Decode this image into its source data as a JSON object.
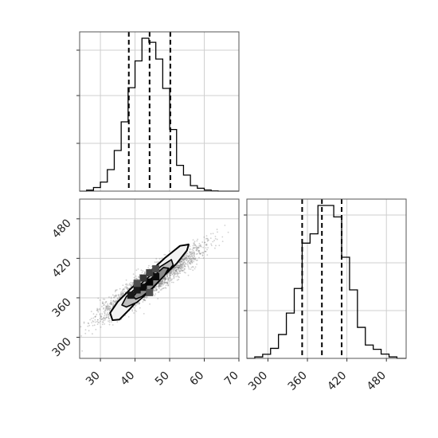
{
  "chart_data": [
    {
      "type": "histogram",
      "panel": "top-left",
      "grid": true,
      "xlim": [
        24,
        70
      ],
      "ylim": [
        0,
        5200
      ],
      "bins": [
        [
          24,
          26,
          0
        ],
        [
          26,
          28,
          40
        ],
        [
          28,
          30,
          150
        ],
        [
          30,
          32,
          380
        ],
        [
          32,
          34,
          900
        ],
        [
          34,
          36,
          1700
        ],
        [
          36,
          38,
          2900
        ],
        [
          38,
          40,
          4330
        ],
        [
          40,
          42,
          5450
        ],
        [
          42,
          44,
          6400
        ],
        [
          44,
          46,
          6230
        ],
        [
          46,
          48,
          5530
        ],
        [
          48,
          50,
          4300
        ],
        [
          50,
          52,
          2580
        ],
        [
          52,
          54,
          1080
        ],
        [
          54,
          56,
          670
        ],
        [
          56,
          58,
          230
        ],
        [
          58,
          60,
          120
        ],
        [
          60,
          62,
          45
        ],
        [
          62,
          64,
          10
        ],
        [
          64,
          70,
          0
        ]
      ],
      "quantiles": [
        38.2,
        44.2,
        50.2
      ]
    },
    {
      "type": "contour",
      "panel": "bottom-left",
      "grid": true,
      "xlim": [
        24,
        70
      ],
      "ylim": [
        268,
        510
      ],
      "x_ticks": [
        "30",
        "40",
        "50",
        "60",
        "70"
      ],
      "y_ticks": [
        "300",
        "360",
        "420",
        "480"
      ],
      "x_tick_values": [
        30,
        40,
        50,
        60,
        70
      ],
      "y_tick_values": [
        300,
        360,
        420,
        480
      ],
      "center": [
        44.2,
        382
      ],
      "contour_levels": [
        {
          "name": "outer",
          "polygon": [
            [
              33.5,
              326
            ],
            [
              32.8,
              337
            ],
            [
              35,
              354
            ],
            [
              39,
              375
            ],
            [
              44,
              398
            ],
            [
              48.5,
              420
            ],
            [
              53,
              439
            ],
            [
              55.5,
              441
            ],
            [
              55,
              432
            ],
            [
              52,
              412
            ],
            [
              48,
              392
            ],
            [
              43,
              369
            ],
            [
              38.5,
              343
            ],
            [
              35.5,
              327
            ]
          ]
        },
        {
          "name": "middle",
          "polygon": [
            [
              36.2,
              349
            ],
            [
              37.5,
              362
            ],
            [
              42.5,
              385
            ],
            [
              47.5,
              408
            ],
            [
              50.5,
              418
            ],
            [
              51,
              410
            ],
            [
              48.5,
              394
            ],
            [
              44.5,
              371
            ],
            [
              40.5,
              353
            ],
            [
              37.5,
              346
            ]
          ]
        },
        {
          "name": "inner",
          "polygon": [
            [
              39.5,
              362
            ],
            [
              41.2,
              373
            ],
            [
              45,
              391
            ],
            [
              48.2,
              406
            ],
            [
              49.7,
              405
            ],
            [
              48.5,
              394
            ],
            [
              45,
              375
            ],
            [
              42,
              362
            ],
            [
              40.2,
              358
            ]
          ]
        }
      ],
      "density_cells": [
        [
          38.8,
          364,
          0.9
        ],
        [
          40.6,
          372,
          0.9
        ],
        [
          42.4,
          376,
          0.95
        ],
        [
          44.2,
          384,
          0.98
        ],
        [
          46,
          392,
          0.95
        ],
        [
          42.4,
          390,
          0.8
        ],
        [
          44.2,
          398,
          0.75
        ],
        [
          46,
          404,
          0.7
        ],
        [
          40.6,
          382,
          0.7
        ],
        [
          44.2,
          368,
          0.7
        ]
      ]
    },
    {
      "type": "histogram",
      "panel": "bottom-right",
      "grid": true,
      "xlim": [
        268,
        510
      ],
      "ylim": [
        0,
        5200
      ],
      "x_ticks": [
        "300",
        "360",
        "420",
        "480"
      ],
      "x_tick_values": [
        300,
        360,
        420,
        480
      ],
      "bins": [
        [
          268,
          280,
          0
        ],
        [
          280,
          292,
          60
        ],
        [
          292,
          304,
          170
        ],
        [
          304,
          316,
          420
        ],
        [
          316,
          328,
          1000
        ],
        [
          328,
          340,
          1900
        ],
        [
          340,
          352,
          2930
        ],
        [
          352,
          364,
          4830
        ],
        [
          364,
          376,
          5220
        ],
        [
          376,
          388,
          6410
        ],
        [
          388,
          400,
          6410
        ],
        [
          400,
          412,
          5930
        ],
        [
          412,
          424,
          4240
        ],
        [
          424,
          436,
          2870
        ],
        [
          436,
          448,
          1300
        ],
        [
          448,
          460,
          560
        ],
        [
          460,
          472,
          380
        ],
        [
          472,
          484,
          180
        ],
        [
          484,
          496,
          60
        ],
        [
          496,
          510,
          0
        ]
      ],
      "quantiles": [
        352,
        382,
        412
      ]
    }
  ]
}
